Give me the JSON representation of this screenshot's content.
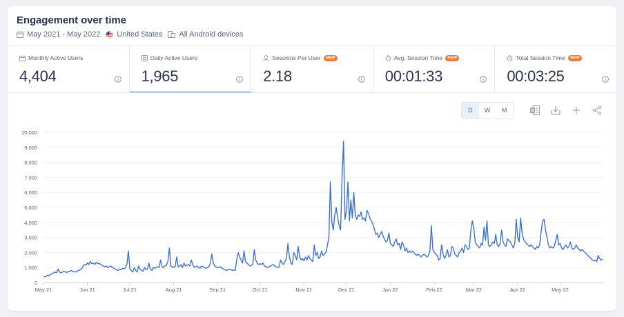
{
  "header": {
    "title": "Engagement over time",
    "date_range": "May 2021 - May 2022",
    "country": "United States",
    "device": "All Android devices"
  },
  "metrics": [
    {
      "label": "Monthly Active Users",
      "value": "4,404",
      "badge": "",
      "icon": "calendar-icon"
    },
    {
      "label": "Daily Active Users",
      "value": "1,965",
      "badge": "",
      "icon": "calendar-day-icon"
    },
    {
      "label": "Sessions Per User",
      "value": "2.18",
      "badge": "NEW",
      "icon": "user-icon"
    },
    {
      "label": "Avg. Session Time",
      "value": "00:01:33",
      "badge": "NEW",
      "icon": "stopwatch-icon"
    },
    {
      "label": "Total Session Time",
      "value": "00:03:25",
      "badge": "NEW",
      "icon": "stopwatch-icon"
    }
  ],
  "granularity": {
    "options": [
      "D",
      "W",
      "M"
    ],
    "selected": "D"
  },
  "colors": {
    "line": "#3d6fd8",
    "accent": "#3d6fd8",
    "badge": "#f07a3a"
  },
  "chart_data": {
    "type": "line",
    "title": "",
    "xlabel": "",
    "ylabel": "",
    "ylim": [
      0,
      10000
    ],
    "y_ticks": [
      "0",
      "1,000",
      "2,000",
      "3,000",
      "4,000",
      "5,000",
      "6,000",
      "7,000",
      "8,000",
      "9,000",
      "10,000"
    ],
    "x_ticks": [
      "May 21",
      "Jun 21",
      "Jul 21",
      "Aug 21",
      "Sep 21",
      "Oct 21",
      "Nov 21",
      "Dec 21",
      "Jan 22",
      "Feb 22",
      "Mar 22",
      "Apr 22",
      "May 22"
    ],
    "grid": true,
    "legend": "none",
    "series": [
      {
        "name": "",
        "x_start": "2021-05-01",
        "x_end": "2022-05-31",
        "values": [
          400,
          380,
          420,
          500,
          450,
          550,
          600,
          650,
          700,
          650,
          900,
          700,
          650,
          700,
          750,
          700,
          680,
          720,
          760,
          800,
          750,
          720,
          700,
          750,
          800,
          850,
          900,
          1100,
          1200,
          1150,
          1300,
          1200,
          1400,
          1250,
          1300,
          1200,
          1350,
          1250,
          1300,
          1200,
          1150,
          1100,
          1050,
          1100,
          1000,
          1050,
          1100,
          1000,
          950,
          900,
          850,
          800,
          900,
          850,
          950,
          900,
          1000,
          1200,
          2100,
          900,
          800,
          700,
          1000,
          800,
          700,
          1100,
          900,
          800,
          750,
          1000,
          850,
          900,
          1300,
          900,
          800,
          1000,
          950,
          1000,
          1050,
          1000,
          1500,
          1050,
          1000,
          1100,
          1150,
          1400,
          2300,
          1100,
          1050,
          1000,
          1100,
          1700,
          1050,
          1100,
          1200,
          1000,
          1300,
          1100,
          1150,
          1200,
          1100,
          1500,
          1200,
          1000,
          1050,
          1100,
          1000,
          950,
          1100,
          1050,
          1000,
          950,
          1000,
          1050,
          1300,
          1900,
          1300,
          1100,
          1050,
          1000,
          1000,
          1050,
          950,
          900,
          850,
          800,
          850,
          900,
          850,
          800,
          850,
          800,
          1500,
          2000,
          1700,
          1500,
          1300,
          2100,
          1400,
          1300,
          1200,
          1100,
          1150,
          1200,
          2200,
          1500,
          1300,
          1200,
          1250,
          1200,
          1300,
          1100,
          1050,
          1000,
          1050,
          1100,
          1150,
          1200,
          1100,
          1050,
          1000,
          1050,
          1500,
          1300,
          1200,
          1400,
          1600,
          2600,
          1700,
          1300,
          1200,
          2000,
          1800,
          1500,
          2400,
          1700,
          1500,
          1600,
          1450,
          1700,
          1500,
          1800,
          1600,
          1500,
          1400,
          2500,
          1800,
          2000,
          1600,
          1700,
          2100,
          1800,
          1900,
          2000,
          2500,
          3000,
          6700,
          4000,
          3500,
          4500,
          5000,
          4300,
          3800,
          3500,
          7000,
          9400,
          4200,
          4800,
          6700,
          4100,
          5500,
          4300,
          6000,
          4500,
          4200,
          4500,
          4400,
          4700,
          4200,
          4300,
          4100,
          4800,
          4600,
          4300,
          4100,
          3900,
          3600,
          3200,
          3300,
          3000,
          3200,
          3400,
          3100,
          2900,
          2700,
          2800,
          3300,
          2600,
          2500,
          2400,
          2700,
          2900,
          2500,
          2600,
          2200,
          2700,
          2500,
          2100,
          2300,
          2000,
          2100,
          2000,
          2100,
          2000,
          1900,
          1800,
          1900,
          1800,
          1700,
          1800,
          1900,
          1800,
          1700,
          1800,
          2100,
          3800,
          2200,
          2000,
          1900,
          1800,
          1500,
          1600,
          2500,
          1900,
          1600,
          1800,
          2200,
          1700,
          1800,
          2400,
          2300,
          1900,
          1800,
          1700,
          2000,
          2100,
          2300,
          2000,
          2500,
          2400,
          2200,
          2300,
          3500,
          4100,
          3600,
          2700,
          2500,
          2400,
          2300,
          2600,
          2500,
          3700,
          2800,
          4100,
          2500,
          2400,
          2500,
          2700,
          2600,
          3200,
          2500,
          2400,
          2600,
          3500,
          2700,
          2500,
          2400,
          2900,
          2800,
          2700,
          2500,
          2300,
          2600,
          4200,
          3000,
          2700,
          4300,
          3300,
          2900,
          2700,
          2600,
          2500,
          2400,
          2500,
          2400,
          2300,
          2200,
          2400,
          2300,
          2500,
          3400,
          4100,
          4200,
          3500,
          3000,
          2500,
          2300,
          2400,
          2300,
          2400,
          2800,
          3200,
          2500,
          2600,
          2300,
          2200,
          2400,
          2500,
          2300,
          2400,
          2700,
          2300,
          2200,
          2300,
          2500,
          2300,
          2200,
          2100,
          2200,
          2100,
          2000,
          1900,
          1800,
          1700,
          1600,
          1500,
          1450,
          1500,
          1400,
          1800,
          1600,
          1500,
          1550
        ]
      }
    ]
  }
}
